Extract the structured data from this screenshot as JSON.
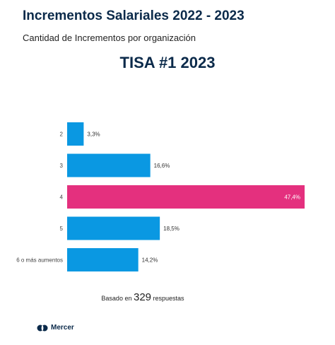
{
  "header": {
    "title": "Incrementos Salariales 2022 - 2023",
    "subtitle": "Cantidad de Incrementos por organización"
  },
  "chart_data": {
    "type": "bar",
    "orientation": "horizontal",
    "title": "TISA #1 2023",
    "categories": [
      "2",
      "3",
      "4",
      "5",
      "6 o más aumentos"
    ],
    "values": [
      3.3,
      16.6,
      47.4,
      18.5,
      14.2
    ],
    "value_labels": [
      "3,3%",
      "16,6%",
      "47,4%",
      "18,5%",
      "14,2%"
    ],
    "highlight_index": 2,
    "colors": {
      "default": "#0a98e2",
      "highlight": "#e4307e"
    },
    "xlim": [
      0,
      47.4
    ],
    "grid": false,
    "legend": "none"
  },
  "footer": {
    "prefix": "Basado en",
    "count": "329",
    "suffix": "respuestas"
  },
  "brand": {
    "name": "Mercer",
    "icon": "mercer-logo-icon"
  }
}
